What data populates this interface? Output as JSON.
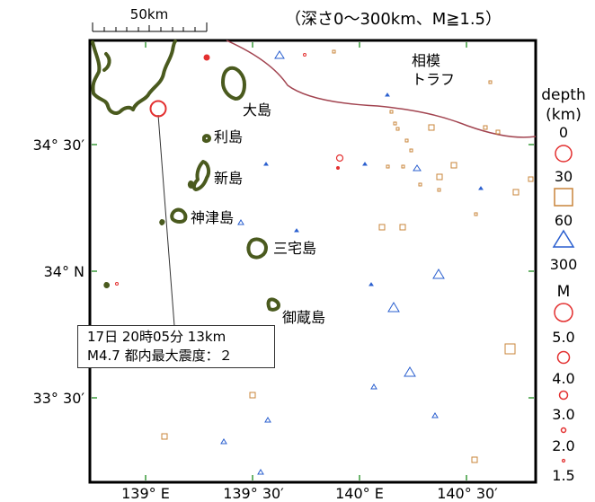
{
  "title": "（深さ0～300km、M≧1.5）",
  "scale_bar": {
    "label": "50km"
  },
  "latitude_labels": [
    "34° 30′",
    "34° N",
    "33° 30′"
  ],
  "longitude_labels": [
    "139° E",
    "139° 30′",
    "140° E",
    "140° 30′"
  ],
  "place_labels": {
    "oshima": "大島",
    "toshima": "利島",
    "niijima": "新島",
    "kozushima": "神津島",
    "miyakejima": "三宅島",
    "mikurajima": "御蔵島",
    "trough_line1": "相模",
    "trough_line2": "トラフ"
  },
  "legend": {
    "depth_title_line1": "depth",
    "depth_title_line2": "(km)",
    "depth_values": [
      "0",
      "30",
      "60",
      "300"
    ],
    "depth_classes": [
      {
        "range": "0-30",
        "symbol": "circle",
        "color": "#e33030"
      },
      {
        "range": "30-60",
        "symbol": "square",
        "color": "#c8843a"
      },
      {
        "range": "60-300",
        "symbol": "triangle",
        "color": "#2a5fcf"
      }
    ],
    "magnitude_title": "M",
    "magnitude_values": [
      "5.0",
      "4.0",
      "3.0",
      "2.0",
      "1.5"
    ]
  },
  "annotation": {
    "line1": "17日 20時05分 13km",
    "line2": "M4.7 都内最大震度：２"
  },
  "colors": {
    "coastline": "#4a5a1e",
    "trough": "#a24450",
    "shallow": "#e33030",
    "intermediate": "#c8843a",
    "deep": "#2a5fcf"
  }
}
